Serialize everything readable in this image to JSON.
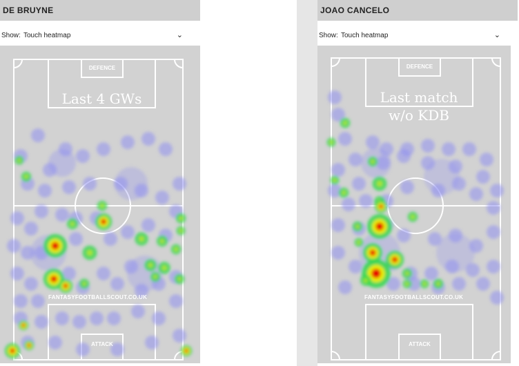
{
  "panels": [
    {
      "title": "DE BRUYNE",
      "select_label": "Show:",
      "select_value": "Touch heatmap",
      "defence_label": "DEFENCE",
      "attack_label": "ATTACK",
      "watermark": "FANTASYFOOTBALLSCOUT.CO.UK",
      "overlay_text": [
        "Last 4 GWs"
      ]
    },
    {
      "title": "JOAO CANCELO",
      "select_label": "Show:",
      "select_value": "Touch heatmap",
      "defence_label": "DEFENCE",
      "attack_label": "ATTACK",
      "watermark": "FANTASYFOOTBALLSCOUT.CO.UK",
      "overlay_text": [
        "Last match",
        "w/o KDB"
      ]
    }
  ],
  "icons": {
    "chevron": "chevron-down-icon"
  },
  "colors": {
    "heat_low": "#8f8ff0",
    "heat_mid": "#2fd84a",
    "heat_warm": "#f3f000",
    "heat_hot": "#e60000"
  }
}
